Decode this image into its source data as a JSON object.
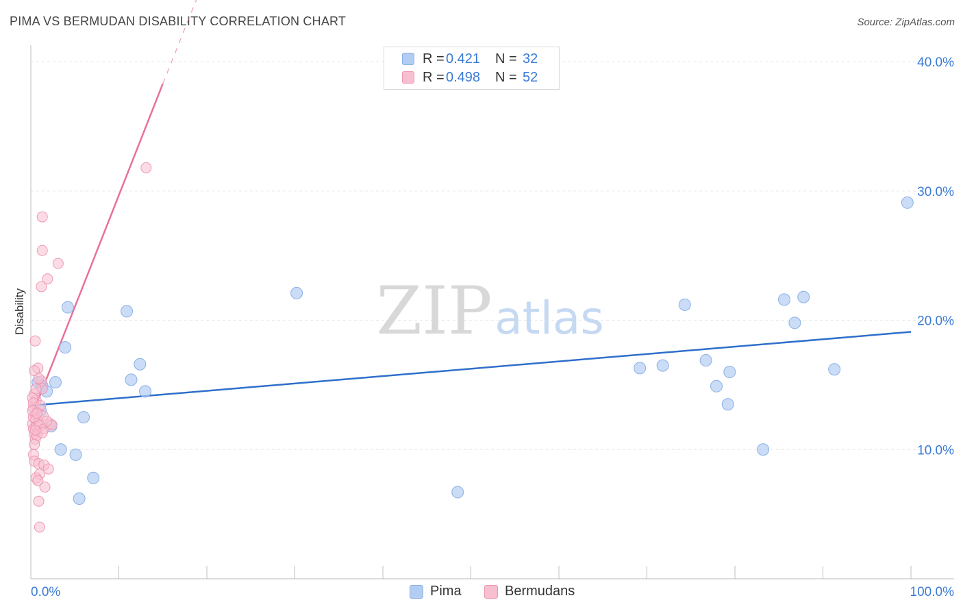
{
  "title": "PIMA VS BERMUDAN DISABILITY CORRELATION CHART",
  "source": "Source: ZipAtlas.com",
  "watermark": {
    "zip": "ZIP",
    "atlas": "atlas"
  },
  "colors": {
    "pima_fill": "#b3cdf2",
    "pima_stroke": "#8ab0e6",
    "pima_line": "#2f6fcb",
    "bermudan_fill": "#f7bfcf",
    "bermudan_stroke": "#ef97b2",
    "bermudan_line": "#e8709a",
    "axis_label": "#3a7bd5",
    "grid": "#e6e6e6"
  },
  "legend_top": [
    {
      "r_label": "R =",
      "r_value": "0.421",
      "n_label": "N =",
      "n_value": "32"
    },
    {
      "r_label": "R =",
      "r_value": "0.498",
      "n_label": "N =",
      "n_value": "52"
    }
  ],
  "legend_bottom": [
    "Pima",
    "Bermudans"
  ],
  "chart_data": {
    "type": "scatter",
    "title": "PIMA VS BERMUDAN DISABILITY CORRELATION CHART",
    "xlabel": "",
    "ylabel": "Disability",
    "xlim": [
      0,
      100
    ],
    "ylim": [
      0,
      40.8
    ],
    "x_tick_labels": [
      "0.0%",
      "100.0%"
    ],
    "y_ticks": [
      10,
      20,
      30,
      40
    ],
    "y_tick_labels": [
      "10.0%",
      "20.0%",
      "30.0%",
      "40.0%"
    ],
    "grid": true,
    "series": [
      {
        "name": "Pima",
        "points": [
          [
            0.8,
            15.2
          ],
          [
            1.3,
            14.9
          ],
          [
            1.8,
            14.5
          ],
          [
            2.8,
            15.2
          ],
          [
            2.3,
            11.8
          ],
          [
            4.2,
            21.0
          ],
          [
            3.9,
            17.9
          ],
          [
            3.4,
            10.0
          ],
          [
            5.1,
            9.6
          ],
          [
            6.0,
            12.5
          ],
          [
            7.1,
            7.8
          ],
          [
            5.5,
            6.2
          ],
          [
            10.9,
            20.7
          ],
          [
            12.4,
            16.6
          ],
          [
            11.4,
            15.4
          ],
          [
            13.0,
            14.5
          ],
          [
            30.2,
            22.1
          ],
          [
            48.5,
            6.7
          ],
          [
            69.2,
            16.3
          ],
          [
            71.8,
            16.5
          ],
          [
            74.3,
            21.2
          ],
          [
            76.7,
            16.9
          ],
          [
            77.9,
            14.9
          ],
          [
            79.4,
            16.0
          ],
          [
            79.2,
            13.5
          ],
          [
            83.2,
            10.0
          ],
          [
            85.6,
            21.6
          ],
          [
            86.8,
            19.8
          ],
          [
            87.8,
            21.8
          ],
          [
            91.3,
            16.2
          ],
          [
            99.6,
            29.1
          ],
          [
            1.1,
            13.0
          ]
        ],
        "trend": {
          "x": [
            0,
            100
          ],
          "y": [
            13.4,
            19.1
          ]
        }
      },
      {
        "name": "Bermudans",
        "points": [
          [
            0.2,
            12.0
          ],
          [
            0.3,
            11.6
          ],
          [
            0.4,
            11.2
          ],
          [
            0.5,
            12.4
          ],
          [
            0.6,
            11.8
          ],
          [
            0.3,
            13.2
          ],
          [
            0.7,
            12.9
          ],
          [
            0.8,
            11.4
          ],
          [
            0.9,
            12.1
          ],
          [
            1.0,
            11.9
          ],
          [
            0.4,
            14.3
          ],
          [
            0.6,
            13.8
          ],
          [
            0.5,
            10.8
          ],
          [
            0.7,
            11.1
          ],
          [
            0.3,
            9.6
          ],
          [
            0.4,
            9.1
          ],
          [
            0.9,
            8.9
          ],
          [
            1.0,
            8.1
          ],
          [
            0.6,
            7.8
          ],
          [
            0.8,
            7.6
          ],
          [
            1.5,
            8.8
          ],
          [
            2.0,
            8.5
          ],
          [
            1.6,
            7.1
          ],
          [
            0.9,
            6.0
          ],
          [
            1.0,
            4.0
          ],
          [
            0.5,
            18.4
          ],
          [
            0.8,
            16.3
          ],
          [
            0.4,
            16.1
          ],
          [
            1.2,
            15.3
          ],
          [
            1.3,
            14.7
          ],
          [
            0.9,
            15.5
          ],
          [
            0.2,
            14.0
          ],
          [
            0.3,
            13.6
          ],
          [
            0.6,
            14.7
          ],
          [
            1.1,
            13.4
          ],
          [
            1.4,
            12.6
          ],
          [
            1.5,
            11.6
          ],
          [
            2.2,
            12.0
          ],
          [
            2.4,
            11.9
          ],
          [
            1.3,
            11.3
          ],
          [
            1.8,
            12.2
          ],
          [
            0.3,
            12.5
          ],
          [
            1.2,
            22.6
          ],
          [
            1.9,
            23.2
          ],
          [
            3.1,
            24.4
          ],
          [
            1.3,
            25.4
          ],
          [
            1.3,
            28.0
          ],
          [
            13.1,
            31.8
          ],
          [
            0.2,
            13.0
          ],
          [
            0.7,
            12.8
          ],
          [
            0.5,
            11.5
          ],
          [
            0.4,
            10.4
          ]
        ],
        "trend": {
          "x": [
            0,
            15.0
          ],
          "y": [
            12.4,
            38.3
          ]
        },
        "trend_extension": {
          "x": [
            15.0,
            19.4
          ],
          "y": [
            38.3,
            45.8
          ]
        }
      }
    ]
  }
}
